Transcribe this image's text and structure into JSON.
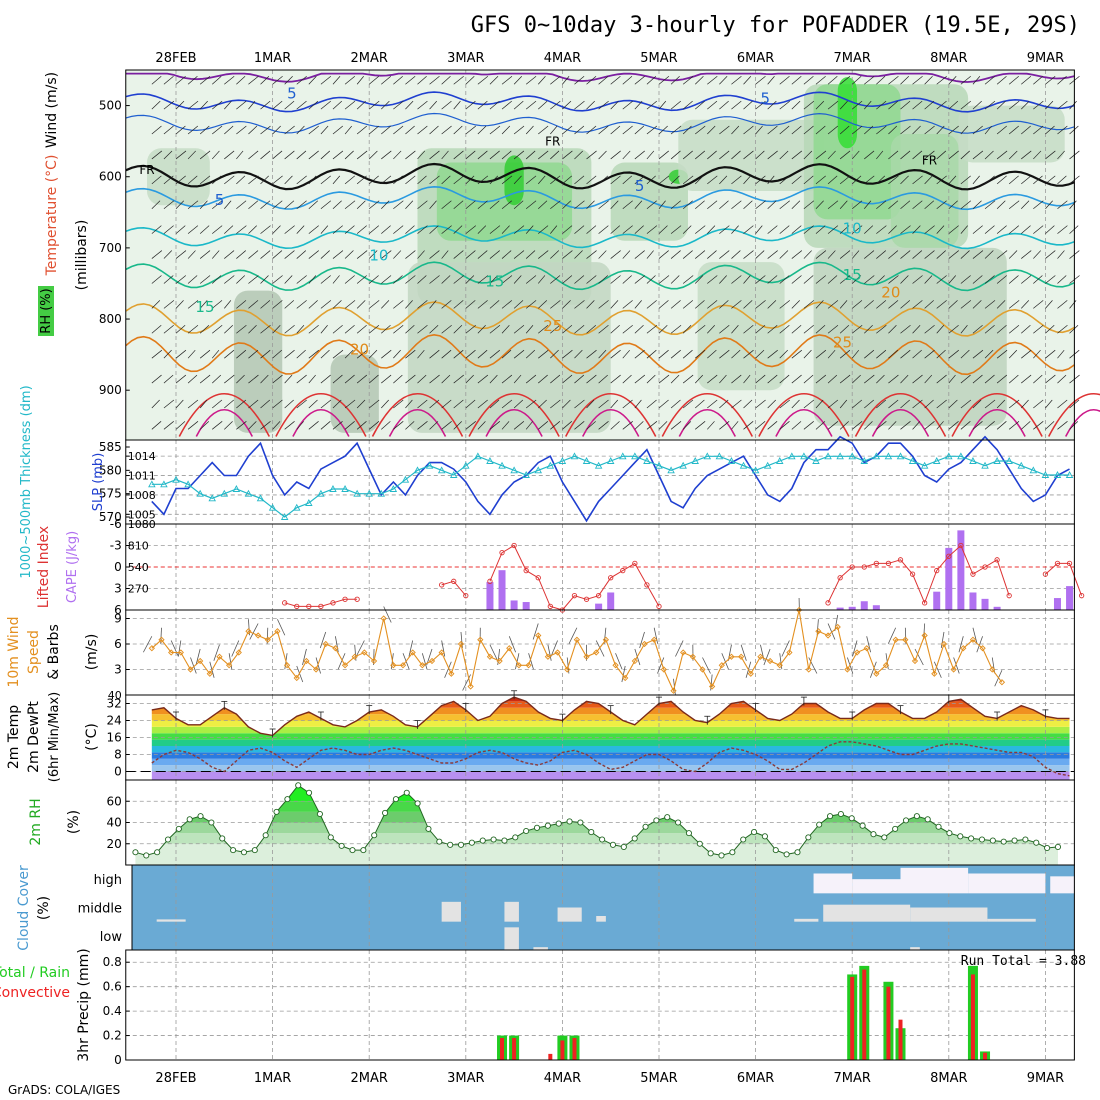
{
  "title": "GFS 0~10day 3-hourly for POFADDER (19.5E, 29S)",
  "credit": "GrADS: COLA/IGES",
  "colors": {
    "grid": "#9a9a9a",
    "frame": "#000000",
    "cloud": "#6aaad4",
    "cloud_fill": "#e3e3e3",
    "rain": "#22cc22",
    "conv": "#ee2222",
    "cape": "#b070f0",
    "li": "#dd3333",
    "slp": "#1f3fd0",
    "thick": "#22b8c8",
    "wind": "#e39020",
    "temp": "#7a2a1a",
    "rh": "#22aa22"
  },
  "chart_data": [
    {
      "type": "area",
      "panel": "upper_air",
      "title": "GFS 0~10day 3-hourly for POFADDER (19.5E, 29S)",
      "ylabel_parts": [
        "RH (%)",
        "Temperature (°C)",
        "Wind (m/s)"
      ],
      "ylabel_units": "(millibars)",
      "yticks": [
        500,
        600,
        700,
        800,
        900
      ],
      "ylim": [
        450,
        970
      ],
      "xticks": [
        "28FEB",
        "1MAR",
        "2MAR",
        "3MAR",
        "4MAR",
        "5MAR",
        "6MAR",
        "7MAR",
        "8MAR",
        "9MAR"
      ],
      "contour_labels": [
        {
          "text": "5",
          "day": 1.2,
          "p": 490
        },
        {
          "text": "5",
          "day": 6.1,
          "p": 497
        },
        {
          "text": "FR",
          "day": -0.3,
          "p": 596
        },
        {
          "text": "FR",
          "day": 3.9,
          "p": 556
        },
        {
          "text": "FR",
          "day": 7.8,
          "p": 583
        },
        {
          "text": "5",
          "day": 0.45,
          "p": 640
        },
        {
          "text": "5",
          "day": 4.8,
          "p": 620
        },
        {
          "text": "10",
          "day": 2.1,
          "p": 718
        },
        {
          "text": "10",
          "day": 7.0,
          "p": 680
        },
        {
          "text": "15",
          "day": 0.3,
          "p": 790
        },
        {
          "text": "15",
          "day": 3.3,
          "p": 754
        },
        {
          "text": "15",
          "day": 7.0,
          "p": 745
        },
        {
          "text": "20",
          "day": 1.9,
          "p": 850
        },
        {
          "text": "20",
          "day": 7.4,
          "p": 770
        },
        {
          "text": "25",
          "day": 3.9,
          "p": 817
        },
        {
          "text": "25",
          "day": 6.9,
          "p": 840
        }
      ]
    },
    {
      "type": "line",
      "panel": "slp_thickness",
      "ylabel_left": "1000~500mb Thickness (dm)",
      "ylabel_right": "SLP (mb)",
      "yticks_left": [
        570,
        575,
        580,
        585
      ],
      "yticks_right": [
        1005,
        1008,
        1011,
        1014
      ],
      "series": [
        {
          "name": "SLP (mb)",
          "values": [
            1007,
            1005,
            1009,
            1009,
            1011,
            1013,
            1011,
            1011,
            1014,
            1016,
            1011,
            1008,
            1010,
            1009,
            1012,
            1013,
            1014,
            1016,
            1012,
            1008,
            1010,
            1008,
            1011,
            1013,
            1013,
            1012,
            1010,
            1007,
            1005,
            1008,
            1010,
            1011,
            1013,
            1014,
            1010,
            1007,
            1004,
            1007,
            1009,
            1011,
            1013,
            1015,
            1011,
            1007,
            1006,
            1009,
            1011,
            1012,
            1013,
            1014,
            1011,
            1008,
            1007,
            1009,
            1013,
            1015,
            1015,
            1017,
            1016,
            1013,
            1014,
            1016,
            1016,
            1014,
            1011,
            1010,
            1012,
            1013,
            1015,
            1017,
            1015,
            1012,
            1009,
            1007,
            1008,
            1011,
            1012
          ]
        },
        {
          "name": "Thickness (dm)",
          "values": [
            577,
            577,
            578,
            577,
            575,
            574,
            575,
            576,
            575,
            574,
            572,
            570,
            572,
            573,
            575,
            576,
            576,
            575,
            575,
            575,
            576,
            578,
            580,
            581,
            580,
            579,
            581,
            583,
            582,
            581,
            580,
            579,
            580,
            581,
            582,
            583,
            582,
            581,
            582,
            583,
            583,
            582,
            581,
            580,
            581,
            582,
            583,
            583,
            582,
            581,
            580,
            581,
            582,
            583,
            583,
            582,
            583,
            583,
            583,
            582,
            583,
            583,
            583,
            582,
            581,
            582,
            583,
            583,
            582,
            581,
            582,
            582,
            581,
            580,
            579,
            579,
            579
          ]
        }
      ]
    },
    {
      "type": "bar",
      "panel": "cape_li",
      "ylabel_left": "Lifted Index",
      "ylabel_right": "CAPE (J/kg)",
      "yticks_left": [
        -6,
        -3,
        0,
        3,
        6
      ],
      "yticks_right": [
        270,
        540,
        810,
        1080
      ],
      "series": [
        {
          "name": "CAPE (J/kg)",
          "values": [
            0,
            0,
            0,
            0,
            0,
            0,
            0,
            0,
            0,
            0,
            0,
            0,
            0,
            0,
            0,
            0,
            0,
            0,
            0,
            0,
            0,
            0,
            0,
            0,
            0,
            0,
            0,
            0,
            350,
            500,
            120,
            100,
            0,
            0,
            0,
            0,
            0,
            80,
            220,
            0,
            0,
            0,
            0,
            0,
            0,
            0,
            0,
            0,
            0,
            0,
            0,
            0,
            0,
            0,
            0,
            0,
            0,
            30,
            40,
            110,
            60,
            0,
            0,
            0,
            0,
            230,
            780,
            1000,
            220,
            140,
            40,
            0,
            0,
            0,
            0,
            150,
            300
          ]
        },
        {
          "name": "Lifted Index",
          "values": [
            null,
            null,
            null,
            null,
            null,
            null,
            null,
            null,
            null,
            null,
            null,
            5,
            5.5,
            5.5,
            5.5,
            5,
            4.5,
            4.5,
            null,
            null,
            null,
            null,
            null,
            null,
            2.5,
            2,
            4,
            null,
            2,
            -2,
            -3,
            0.5,
            1.5,
            5.5,
            6,
            4,
            4.5,
            4,
            1.5,
            0.5,
            -0.5,
            2.5,
            5.5,
            null,
            null,
            null,
            null,
            null,
            null,
            null,
            null,
            null,
            null,
            null,
            null,
            null,
            5,
            1.5,
            0,
            0,
            -0.5,
            -0.5,
            -1,
            1,
            5,
            0.5,
            -1.5,
            -3,
            1,
            0,
            -1,
            4,
            null,
            null,
            1,
            -0.5,
            -0.5,
            4
          ]
        }
      ]
    },
    {
      "type": "line",
      "panel": "wind10m",
      "ylabel": "10m Wind Speed & Barbs (m/s)",
      "yticks": [
        3,
        6,
        9
      ],
      "ylim": [
        0,
        10
      ],
      "series": [
        {
          "name": "10m Wind Speed (m/s)",
          "values": [
            5.5,
            6.5,
            5,
            5,
            3,
            4,
            2.5,
            4.5,
            3.5,
            5,
            7.5,
            7,
            6.5,
            7.5,
            3.5,
            2,
            4,
            3,
            6,
            5.5,
            3.5,
            4.5,
            5,
            4,
            9,
            3.5,
            3.5,
            5,
            3.5,
            4,
            5,
            2.5,
            6,
            1,
            6.5,
            4.5,
            4,
            5.5,
            3.5,
            3.5,
            7,
            4.5,
            5,
            3,
            6.5,
            4.5,
            5,
            6.5,
            3.5,
            2,
            4,
            6,
            6.5,
            3,
            0.5,
            5,
            4.5,
            3,
            1,
            3.5,
            4.5,
            4.5,
            2.5,
            4.5,
            4,
            3.5,
            5,
            10,
            3,
            7.5,
            7,
            8,
            3,
            5,
            5.5,
            2.5,
            3.5,
            6.5,
            6.5,
            4,
            7,
            2.5,
            6,
            3,
            5.5,
            6.5,
            5.5,
            3,
            1.5
          ]
        }
      ]
    },
    {
      "type": "line",
      "panel": "temp2m",
      "ylabel": "2m Temp 2m DewPt (6hr Min/Max) (°C)",
      "yticks": [
        0,
        8,
        16,
        24,
        32
      ],
      "ylim": [
        -4,
        36
      ],
      "series": [
        {
          "name": "2m Temp (°C)",
          "values": [
            29,
            30,
            25,
            22,
            22,
            26,
            30,
            27,
            21,
            18,
            17,
            22,
            26,
            28,
            25,
            22,
            21,
            24,
            28,
            29,
            26,
            22,
            21,
            26,
            31,
            33,
            29,
            24,
            26,
            32,
            35,
            33,
            28,
            25,
            24,
            29,
            33,
            32,
            28,
            24,
            22,
            27,
            32,
            33,
            28,
            24,
            23,
            27,
            32,
            33,
            29,
            25,
            24,
            27,
            32,
            32,
            28,
            25,
            25,
            29,
            32,
            32,
            28,
            25,
            25,
            28,
            33,
            34,
            30,
            26,
            25,
            28,
            31,
            29,
            26,
            25,
            25
          ]
        },
        {
          "name": "2m DewPt (°C)",
          "values": [
            4,
            8,
            10,
            9,
            6,
            2,
            0,
            5,
            10,
            11,
            9,
            5,
            2,
            6,
            10,
            11,
            10,
            8,
            8,
            10,
            11,
            10,
            8,
            6,
            4,
            4,
            6,
            9,
            10,
            9,
            6,
            4,
            3,
            5,
            9,
            10,
            8,
            4,
            1,
            2,
            5,
            8,
            8,
            5,
            1,
            0,
            4,
            9,
            11,
            10,
            8,
            5,
            1,
            1,
            4,
            8,
            12,
            14,
            14,
            13,
            12,
            10,
            8,
            8,
            10,
            12,
            13,
            13,
            12,
            11,
            10,
            9,
            9,
            7,
            2,
            -1,
            -2
          ]
        }
      ]
    },
    {
      "type": "area",
      "panel": "rh2m",
      "ylabel": "2m RH (%)",
      "yticks": [
        20,
        40,
        60
      ],
      "ylim": [
        0,
        80
      ],
      "series": [
        {
          "name": "2m RH (%)",
          "values": [
            12,
            9,
            12,
            24,
            34,
            43,
            46,
            40,
            25,
            14,
            12,
            14,
            28,
            50,
            62,
            75,
            68,
            48,
            26,
            18,
            14,
            14,
            28,
            49,
            62,
            68,
            58,
            34,
            22,
            19,
            19,
            21,
            23,
            24,
            23,
            26,
            32,
            35,
            37,
            39,
            41,
            40,
            31,
            24,
            19,
            17,
            25,
            36,
            42,
            45,
            40,
            30,
            20,
            11,
            9,
            12,
            24,
            31,
            27,
            14,
            10,
            12,
            26,
            38,
            46,
            48,
            44,
            37,
            29,
            26,
            34,
            42,
            46,
            43,
            36,
            30,
            27,
            25,
            24,
            23,
            22,
            23,
            24,
            21,
            16,
            17
          ]
        }
      ]
    },
    {
      "type": "heatmap",
      "panel": "cloud",
      "ylabel": "Cloud Cover (%)",
      "rows": [
        "high",
        "middle",
        "low"
      ]
    },
    {
      "type": "bar",
      "panel": "precip",
      "ylabel": "3hr Precip (mm)",
      "legend": [
        "Total / Rain",
        "Convective"
      ],
      "run_total": "Run Total = 3.88",
      "yticks": [
        0,
        0.2,
        0.4,
        0.6,
        0.8
      ],
      "ylim": [
        0,
        0.9
      ],
      "xticks": [
        "28FEB",
        "1MAR",
        "2MAR",
        "3MAR",
        "4MAR",
        "5MAR",
        "6MAR",
        "7MAR",
        "8MAR",
        "9MAR"
      ],
      "series": [
        {
          "name": "Total / Rain",
          "values": [
            0,
            0,
            0,
            0,
            0,
            0,
            0,
            0,
            0,
            0,
            0,
            0,
            0,
            0,
            0,
            0,
            0,
            0,
            0,
            0,
            0,
            0,
            0,
            0,
            0,
            0,
            0,
            0,
            0,
            0.2,
            0.2,
            0,
            0,
            0,
            0.2,
            0.2,
            0,
            0,
            0,
            0,
            0,
            0,
            0,
            0,
            0,
            0,
            0,
            0,
            0,
            0,
            0,
            0,
            0,
            0,
            0,
            0,
            0,
            0,
            0.7,
            0.77,
            0,
            0.64,
            0.26,
            0,
            0,
            0,
            0,
            0,
            0.77,
            0.07,
            0,
            0,
            0,
            0,
            0,
            0,
            0,
            0
          ]
        },
        {
          "name": "Convective",
          "values": [
            0,
            0,
            0,
            0,
            0,
            0,
            0,
            0,
            0,
            0,
            0,
            0,
            0,
            0,
            0,
            0,
            0,
            0,
            0,
            0,
            0,
            0,
            0,
            0,
            0,
            0,
            0,
            0,
            0,
            0.18,
            0.18,
            0,
            0,
            0.05,
            0.16,
            0.18,
            0,
            0,
            0,
            0,
            0,
            0,
            0,
            0,
            0,
            0,
            0,
            0,
            0,
            0,
            0,
            0,
            0,
            0,
            0,
            0,
            0,
            0,
            0.68,
            0.74,
            0,
            0.6,
            0.33,
            0,
            0,
            0,
            0,
            0,
            0.7,
            0.06,
            0,
            0,
            0,
            0,
            0,
            0,
            0,
            0
          ]
        }
      ]
    }
  ]
}
